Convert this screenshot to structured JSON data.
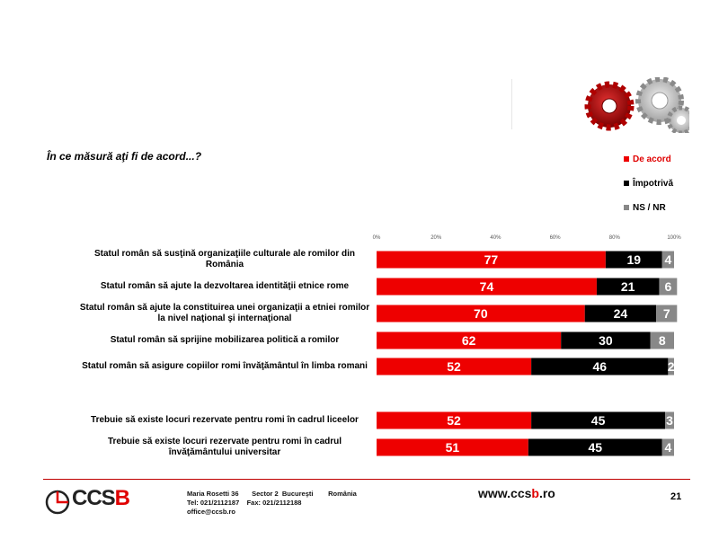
{
  "header": {
    "question": "În ce măsură aţi fi de acord...?"
  },
  "legend": [
    {
      "label": "De acord",
      "color": "#ee0000"
    },
    {
      "label": "Împotrivă",
      "color": "#000000"
    },
    {
      "label": "NS / NR",
      "color": "#888888"
    }
  ],
  "chart_data": {
    "type": "bar",
    "orientation": "horizontal",
    "stacked": true,
    "xlim": [
      0,
      100
    ],
    "x_ticks": [
      "0%",
      "20%",
      "40%",
      "60%",
      "80%",
      "100%"
    ],
    "categories": [
      "Statul român să susţină organizaţiile culturale ale romilor din România",
      "Statul român să ajute la dezvoltarea identităţii etnice rome",
      "Statul român să ajute la constituirea unei organizaţii a etniei romilor la nivel naţional şi internaţional",
      "Statul român să sprijine mobilizarea politică a romilor",
      "Statul român să asigure copiilor romi învăţământul în limba romani",
      "Trebuie să existe locuri rezervate pentru romi în cadrul liceelor",
      "Trebuie să existe locuri rezervate pentru romi în cadrul învăţământului universitar"
    ],
    "series": [
      {
        "name": "De acord",
        "color": "#ee0000",
        "values": [
          77,
          74,
          70,
          62,
          52,
          52,
          51
        ]
      },
      {
        "name": "Împotrivă",
        "color": "#000000",
        "values": [
          19,
          21,
          24,
          30,
          46,
          45,
          45
        ]
      },
      {
        "name": "NS / NR",
        "color": "#888888",
        "values": [
          4,
          6,
          7,
          8,
          2,
          3,
          4
        ]
      }
    ]
  },
  "footer": {
    "logo_text": "CCSB",
    "address_line1": "Maria Rosetti 36       Sector 2  Bucureşti        România",
    "address_line2": "Tel: 021/2112187    Fax: 021/2112188",
    "address_line3": "office@ccsb.ro",
    "website": "www.ccsb.ro",
    "page_number": "21"
  }
}
